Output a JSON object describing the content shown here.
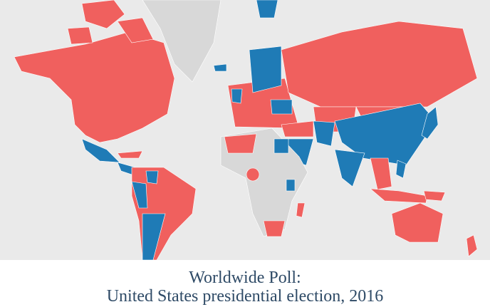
{
  "header": {
    "title_line1": "Worldwide Poll:",
    "title_line2": "United States presidential election, 2016"
  }
}
